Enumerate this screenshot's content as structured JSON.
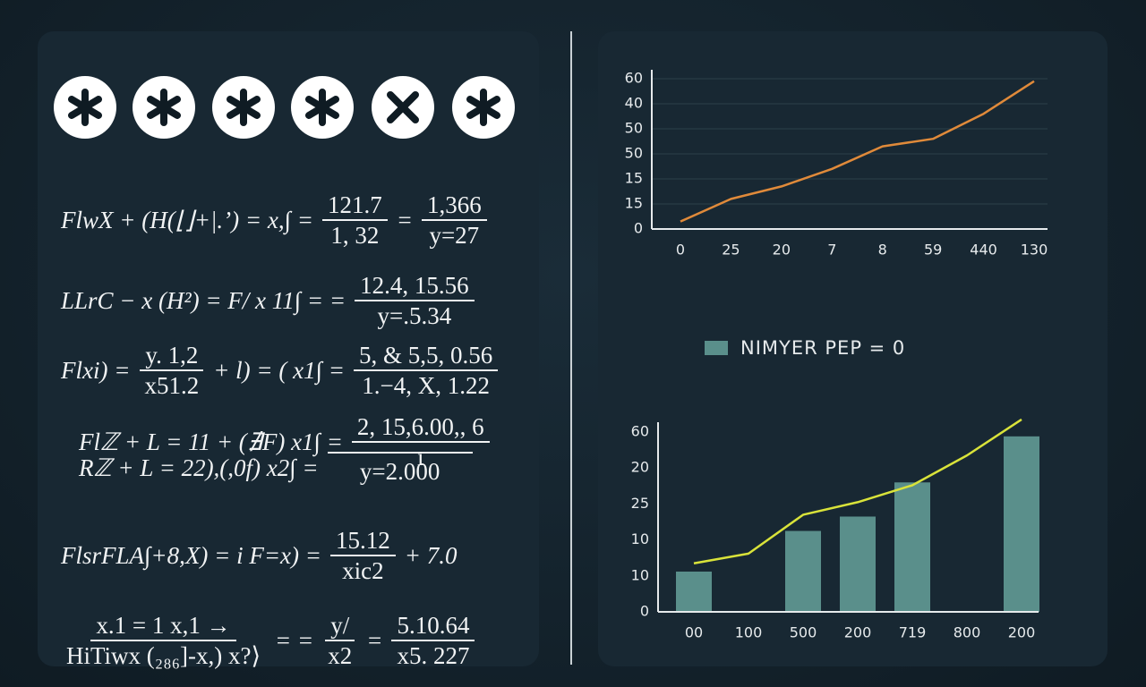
{
  "formulas": [
    {
      "parts": [
        {
          "text": "FlwX + (H(⌊⌋+|.’) = x,∫ ="
        },
        {
          "num": "121.7",
          "den": "1, 32"
        },
        {
          "text": "="
        },
        {
          "num": "1,366",
          "den": "y=27"
        }
      ]
    },
    {
      "parts": [
        {
          "text": "LLrC − x (H²) = F/ x 11∫ = ="
        },
        {
          "num": "12.4, 15.56",
          "den": "y=.5.34"
        }
      ]
    },
    {
      "parts": [
        {
          "text": "Flxi) ="
        },
        {
          "num": "y. 1,2",
          "den": "x51.2"
        },
        {
          "text": "+ l) = ( x1∫ ="
        },
        {
          "num": "5, & 5,5, 0.56",
          "den": "1.−4, X, 1.22"
        }
      ]
    },
    {
      "parts": [
        {
          "text": "Flℤ + L = 11 + (∄F) x1∫ ="
        },
        {
          "num": "2, 15,6.00,, 6",
          "den": "ı"
        }
      ]
    },
    {
      "parts": [
        {
          "text": "Rℤ + L = 22),(,0f) x2∫ ="
        },
        {
          "den": "y=2.000"
        }
      ]
    },
    {
      "parts": [
        {
          "text": "FlsrFLA∫+8,X) = i F=x) ="
        },
        {
          "num": "15.12",
          "den": "xic2"
        },
        {
          "text": "+ 7.0"
        }
      ]
    },
    {
      "parts": [
        {
          "num": "x.1 = 1 x,1 →",
          "den": "HiTiwx (₂₈₆]-x,) x?⟩"
        },
        {
          "text": "= ="
        },
        {
          "num": "y/",
          "den": "x2"
        },
        {
          "text": "="
        },
        {
          "num": "5.10.64",
          "den": "x5. 227"
        }
      ]
    }
  ],
  "chart_data": [
    {
      "type": "line",
      "categories": [
        "0",
        "25",
        "20",
        "7",
        "8",
        "59",
        "440",
        "130"
      ],
      "series": [
        {
          "color": "#e08a3a",
          "values": [
            0.3,
            1.2,
            1.7,
            2.4,
            3.3,
            3.6,
            4.6,
            5.9
          ]
        }
      ],
      "ylim": [
        0,
        6
      ],
      "yticks": [
        0,
        {
          "value": 1,
          "label": "15"
        },
        {
          "value": 2,
          "label": "15"
        },
        {
          "value": 3,
          "label": "50"
        },
        {
          "value": 4,
          "label": "50"
        },
        {
          "value": 5,
          "label": "40"
        },
        {
          "value": 6,
          "label": "60"
        }
      ],
      "grid": true
    },
    {
      "type": "bar",
      "categories": [
        "00",
        "100",
        "500",
        "200",
        "719",
        "800",
        "200"
      ],
      "series": [
        {
          "name": "NIMYER PEP = 0",
          "type": "bar",
          "color": "#5a8f8b",
          "values": [
            1.12,
            null,
            2.25,
            2.65,
            3.6,
            null,
            4.88
          ]
        },
        {
          "type": "line",
          "color": "#d9e33a",
          "values": [
            1.35,
            1.62,
            2.7,
            3.05,
            3.52,
            4.35,
            5.35
          ]
        }
      ],
      "ylim": [
        0,
        5
      ],
      "yticks": [
        0,
        {
          "value": 1,
          "label": "10"
        },
        {
          "value": 2,
          "label": "10"
        },
        {
          "value": 3,
          "label": "25"
        },
        {
          "value": 4,
          "label": "20"
        },
        {
          "value": 5,
          "label": "60"
        }
      ],
      "grid": false
    }
  ]
}
